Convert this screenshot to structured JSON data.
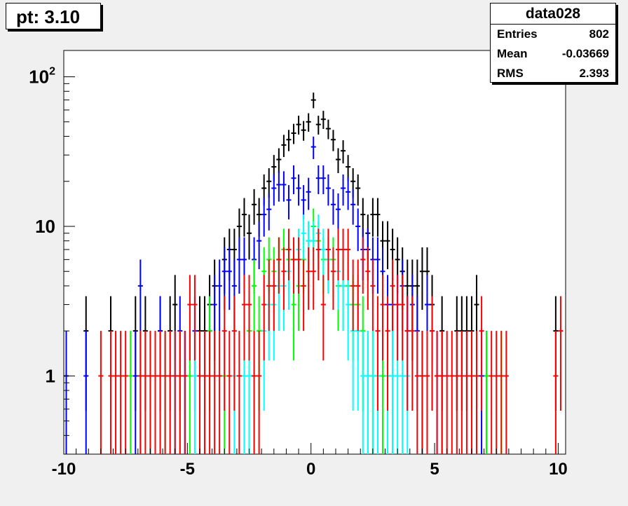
{
  "title": "pt: 3.10",
  "stats": {
    "name": "data028",
    "entries_label": "Entries",
    "entries_value": "802",
    "mean_label": "Mean",
    "mean_value": "-0.03669",
    "rms_label": "RMS",
    "rms_value": "2.393"
  },
  "chart_data": {
    "type": "scatter",
    "xlim": [
      -10,
      10.3
    ],
    "ylim": [
      0.3,
      150
    ],
    "yscale": "log",
    "x_ticks": [
      -10,
      -5,
      0,
      5,
      10
    ],
    "x_tick_labels": [
      "-10",
      "-5",
      "0",
      "5",
      "10"
    ],
    "y_ticks": [
      1,
      10,
      100
    ],
    "y_tick_labels": [
      "1",
      "10",
      "10^2"
    ],
    "bin_width": 0.2,
    "grid": false,
    "series": [
      {
        "color": "#000000",
        "points": [
          [
            -9.1,
            2
          ],
          [
            -8.1,
            2
          ],
          [
            -7.1,
            2
          ],
          [
            -6.7,
            2
          ],
          [
            -6.1,
            2
          ],
          [
            -5.7,
            2
          ],
          [
            -5.5,
            3
          ],
          [
            -4.5,
            2
          ],
          [
            -4.3,
            2
          ],
          [
            -4.1,
            3
          ],
          [
            -3.9,
            4
          ],
          [
            -3.5,
            6
          ],
          [
            -3.3,
            7
          ],
          [
            -3.1,
            7
          ],
          [
            -2.9,
            10
          ],
          [
            -2.7,
            12
          ],
          [
            -2.5,
            9
          ],
          [
            -2.3,
            14
          ],
          [
            -2.1,
            12
          ],
          [
            -1.9,
            18
          ],
          [
            -1.7,
            20
          ],
          [
            -1.5,
            25
          ],
          [
            -1.3,
            28
          ],
          [
            -1.1,
            35
          ],
          [
            -0.9,
            38
          ],
          [
            -0.7,
            42
          ],
          [
            -0.5,
            48
          ],
          [
            -0.3,
            44
          ],
          [
            -0.1,
            50
          ],
          [
            0.1,
            70
          ],
          [
            0.3,
            48
          ],
          [
            0.5,
            52
          ],
          [
            0.7,
            45
          ],
          [
            0.9,
            38
          ],
          [
            1.1,
            28
          ],
          [
            1.3,
            32
          ],
          [
            1.5,
            25
          ],
          [
            1.7,
            20
          ],
          [
            1.9,
            18
          ],
          [
            2.1,
            12
          ],
          [
            2.3,
            9
          ],
          [
            2.5,
            12
          ],
          [
            2.7,
            12
          ],
          [
            2.9,
            8
          ],
          [
            3.1,
            8
          ],
          [
            3.3,
            7
          ],
          [
            3.5,
            6
          ],
          [
            3.7,
            5
          ],
          [
            3.9,
            4
          ],
          [
            4.1,
            4
          ],
          [
            4.3,
            4
          ],
          [
            4.5,
            5
          ],
          [
            4.7,
            5
          ],
          [
            4.9,
            3
          ],
          [
            5.3,
            2
          ],
          [
            5.9,
            2
          ],
          [
            6.1,
            2
          ],
          [
            6.3,
            2
          ],
          [
            6.5,
            2
          ],
          [
            6.7,
            3
          ],
          [
            9.9,
            2
          ]
        ]
      },
      {
        "color": "#0000ff",
        "points": [
          [
            -9.9,
            1
          ],
          [
            -9.1,
            1
          ],
          [
            -7.1,
            1
          ],
          [
            -6.9,
            4
          ],
          [
            -6.1,
            2
          ],
          [
            -5.5,
            1
          ],
          [
            -5.3,
            2
          ],
          [
            -5.1,
            1
          ],
          [
            -4.7,
            2
          ],
          [
            -4.3,
            1
          ],
          [
            -4.1,
            2
          ],
          [
            -3.9,
            3
          ],
          [
            -3.7,
            4
          ],
          [
            -3.5,
            5
          ],
          [
            -3.3,
            5
          ],
          [
            -3.1,
            4
          ],
          [
            -2.9,
            6
          ],
          [
            -2.7,
            6
          ],
          [
            -2.3,
            6
          ],
          [
            -2.1,
            8
          ],
          [
            -1.9,
            12
          ],
          [
            -1.7,
            13
          ],
          [
            -1.5,
            18
          ],
          [
            -1.3,
            19
          ],
          [
            -1.1,
            19
          ],
          [
            -0.9,
            15
          ],
          [
            -0.7,
            21
          ],
          [
            -0.5,
            18
          ],
          [
            -0.3,
            15
          ],
          [
            -0.1,
            17
          ],
          [
            0.1,
            34
          ],
          [
            0.3,
            21
          ],
          [
            0.5,
            21
          ],
          [
            0.7,
            18
          ],
          [
            0.9,
            14
          ],
          [
            1.1,
            13
          ],
          [
            1.3,
            18
          ],
          [
            1.5,
            17
          ],
          [
            1.7,
            14
          ],
          [
            1.9,
            10
          ],
          [
            2.1,
            7
          ],
          [
            2.3,
            7
          ],
          [
            2.5,
            6
          ],
          [
            2.7,
            6
          ],
          [
            2.9,
            5
          ],
          [
            3.1,
            3
          ],
          [
            3.3,
            3
          ],
          [
            3.5,
            3
          ],
          [
            3.7,
            4
          ],
          [
            3.9,
            2
          ],
          [
            4.1,
            3
          ],
          [
            4.3,
            2
          ],
          [
            4.5,
            1
          ],
          [
            4.7,
            3
          ],
          [
            4.9,
            2
          ],
          [
            5.1,
            1
          ],
          [
            5.3,
            1
          ],
          [
            6.9,
            1
          ],
          [
            7.1,
            1
          ]
        ]
      },
      {
        "color": "#00ff00",
        "points": [
          [
            -7.3,
            1
          ],
          [
            -6.9,
            1
          ],
          [
            -6.5,
            1
          ],
          [
            -6.3,
            1
          ],
          [
            -5.9,
            1
          ],
          [
            -5.3,
            1
          ],
          [
            -4.9,
            1
          ],
          [
            -4.1,
            2
          ],
          [
            -3.5,
            1
          ],
          [
            -2.5,
            2
          ],
          [
            -2.1,
            2
          ],
          [
            -2.3,
            4
          ],
          [
            -1.9,
            5
          ],
          [
            -1.7,
            6
          ],
          [
            -1.5,
            5
          ],
          [
            -1.3,
            6
          ],
          [
            -1.1,
            7
          ],
          [
            -0.9,
            6
          ],
          [
            -0.7,
            3
          ],
          [
            -0.5,
            4
          ],
          [
            -0.3,
            6
          ],
          [
            -0.1,
            8
          ],
          [
            0.1,
            10
          ],
          [
            0.3,
            8
          ],
          [
            0.5,
            6
          ],
          [
            0.7,
            6
          ],
          [
            0.9,
            6
          ],
          [
            1.1,
            4
          ],
          [
            1.3,
            4
          ],
          [
            1.5,
            4
          ],
          [
            1.7,
            3
          ],
          [
            1.9,
            3
          ],
          [
            2.1,
            2
          ],
          [
            2.3,
            1
          ],
          [
            2.5,
            1
          ],
          [
            2.7,
            1
          ],
          [
            2.9,
            1
          ],
          [
            3.1,
            1
          ],
          [
            3.3,
            1
          ],
          [
            7.1,
            1
          ],
          [
            7.7,
            1
          ]
        ]
      },
      {
        "color": "#00ffff",
        "points": [
          [
            -5.9,
            1
          ],
          [
            -5.7,
            1
          ],
          [
            -5.5,
            1
          ],
          [
            -4.7,
            1
          ],
          [
            -4.3,
            1
          ],
          [
            -3.7,
            1
          ],
          [
            -3.1,
            1
          ],
          [
            -2.9,
            1
          ],
          [
            -2.7,
            1
          ],
          [
            -2.5,
            1
          ],
          [
            -2.3,
            1
          ],
          [
            -1.9,
            2
          ],
          [
            -1.7,
            3
          ],
          [
            -1.5,
            3
          ],
          [
            -1.3,
            4
          ],
          [
            -1.1,
            4
          ],
          [
            -0.9,
            5
          ],
          [
            -0.7,
            6
          ],
          [
            -0.5,
            7
          ],
          [
            -0.3,
            9
          ],
          [
            -0.1,
            8
          ],
          [
            0.1,
            8
          ],
          [
            0.3,
            9
          ],
          [
            0.5,
            7
          ],
          [
            0.7,
            6
          ],
          [
            0.9,
            5
          ],
          [
            1.1,
            5
          ],
          [
            1.3,
            4
          ],
          [
            1.5,
            3
          ],
          [
            1.7,
            2
          ],
          [
            1.9,
            2
          ],
          [
            2.1,
            1
          ],
          [
            2.3,
            1
          ],
          [
            2.5,
            1
          ],
          [
            2.7,
            1
          ],
          [
            3.1,
            1
          ],
          [
            3.3,
            1
          ],
          [
            3.5,
            1
          ],
          [
            3.7,
            1
          ],
          [
            3.9,
            1
          ],
          [
            4.3,
            1
          ],
          [
            4.7,
            1
          ]
        ]
      },
      {
        "color": "#ff0000",
        "points": [
          [
            -8.5,
            1
          ],
          [
            -8.1,
            1
          ],
          [
            -7.9,
            1
          ],
          [
            -7.7,
            1
          ],
          [
            -7.5,
            1
          ],
          [
            -6.9,
            1
          ],
          [
            -6.7,
            1
          ],
          [
            -6.5,
            1
          ],
          [
            -6.3,
            1
          ],
          [
            -6.1,
            1
          ],
          [
            -5.9,
            1
          ],
          [
            -5.7,
            1
          ],
          [
            -5.5,
            1
          ],
          [
            -5.3,
            1
          ],
          [
            -5.1,
            1
          ],
          [
            -4.9,
            3
          ],
          [
            -4.7,
            3
          ],
          [
            -4.5,
            1
          ],
          [
            -4.3,
            1
          ],
          [
            -4.1,
            1
          ],
          [
            -3.9,
            1
          ],
          [
            -3.7,
            1
          ],
          [
            -3.5,
            2
          ],
          [
            -3.3,
            1
          ],
          [
            -3.1,
            2
          ],
          [
            -2.9,
            1
          ],
          [
            -2.7,
            3
          ],
          [
            -2.5,
            3
          ],
          [
            -2.3,
            1
          ],
          [
            -2.1,
            1
          ],
          [
            -1.9,
            3
          ],
          [
            -1.7,
            4
          ],
          [
            -1.5,
            4
          ],
          [
            -1.3,
            6
          ],
          [
            -1.1,
            5
          ],
          [
            -0.9,
            7
          ],
          [
            -0.7,
            6
          ],
          [
            -0.5,
            6
          ],
          [
            -0.3,
            4
          ],
          [
            -0.1,
            5
          ],
          [
            0.1,
            5
          ],
          [
            0.3,
            7
          ],
          [
            0.5,
            3
          ],
          [
            0.7,
            7
          ],
          [
            0.9,
            5
          ],
          [
            1.1,
            7
          ],
          [
            1.3,
            7
          ],
          [
            1.5,
            7
          ],
          [
            1.7,
            4
          ],
          [
            1.9,
            4
          ],
          [
            2.1,
            6
          ],
          [
            2.3,
            5
          ],
          [
            2.5,
            4
          ],
          [
            2.7,
            2
          ],
          [
            2.9,
            3
          ],
          [
            3.1,
            2
          ],
          [
            3.3,
            4
          ],
          [
            3.5,
            3
          ],
          [
            3.7,
            3
          ],
          [
            3.9,
            2
          ],
          [
            4.1,
            2
          ],
          [
            4.3,
            1
          ],
          [
            4.5,
            1
          ],
          [
            4.7,
            1
          ],
          [
            4.9,
            2
          ],
          [
            5.1,
            1
          ],
          [
            5.3,
            1
          ],
          [
            5.5,
            1
          ],
          [
            5.7,
            1
          ],
          [
            5.9,
            1
          ],
          [
            6.1,
            1
          ],
          [
            6.3,
            1
          ],
          [
            6.5,
            1
          ],
          [
            6.7,
            1
          ],
          [
            6.9,
            2
          ],
          [
            7.3,
            1
          ],
          [
            7.5,
            1
          ],
          [
            7.7,
            1
          ],
          [
            7.9,
            1
          ],
          [
            9.9,
            1
          ],
          [
            10.1,
            2
          ]
        ]
      }
    ]
  }
}
